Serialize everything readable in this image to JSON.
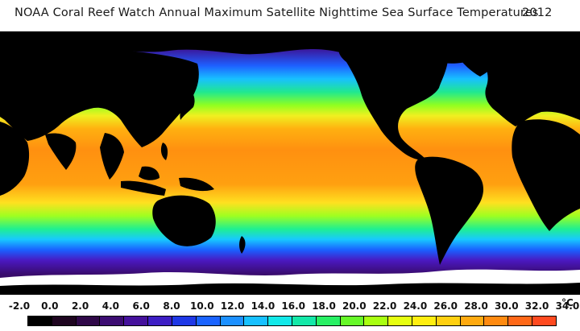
{
  "title": "NOAA Coral Reef Watch Annual Maximum Satellite Nighttime Sea Surface Temperatures",
  "year": "2012",
  "legend": {
    "tick_labels": [
      "-2.0",
      "0.0",
      "2.0",
      "4.0",
      "6.0",
      "8.0",
      "10.0",
      "12.0",
      "14.0",
      "16.0",
      "18.0",
      "20.0",
      "22.0",
      "24.0",
      "26.0",
      "28.0",
      "30.0",
      "32.0",
      "34.0"
    ],
    "unit": "°C",
    "colors": [
      "#000000",
      "#1e0520",
      "#2f0848",
      "#3c0c72",
      "#45119c",
      "#3d1ec4",
      "#1f38e6",
      "#1a63ff",
      "#1c90ff",
      "#17c0ff",
      "#12e8e8",
      "#14e8a8",
      "#28f064",
      "#66f828",
      "#a8ff10",
      "#e6ff10",
      "#ffee10",
      "#ffd010",
      "#ffaa10",
      "#ff8a10",
      "#ff6818",
      "#ff4a20"
    ]
  },
  "map": {
    "land_color": "#000000",
    "ice_color": "#ffffff"
  }
}
